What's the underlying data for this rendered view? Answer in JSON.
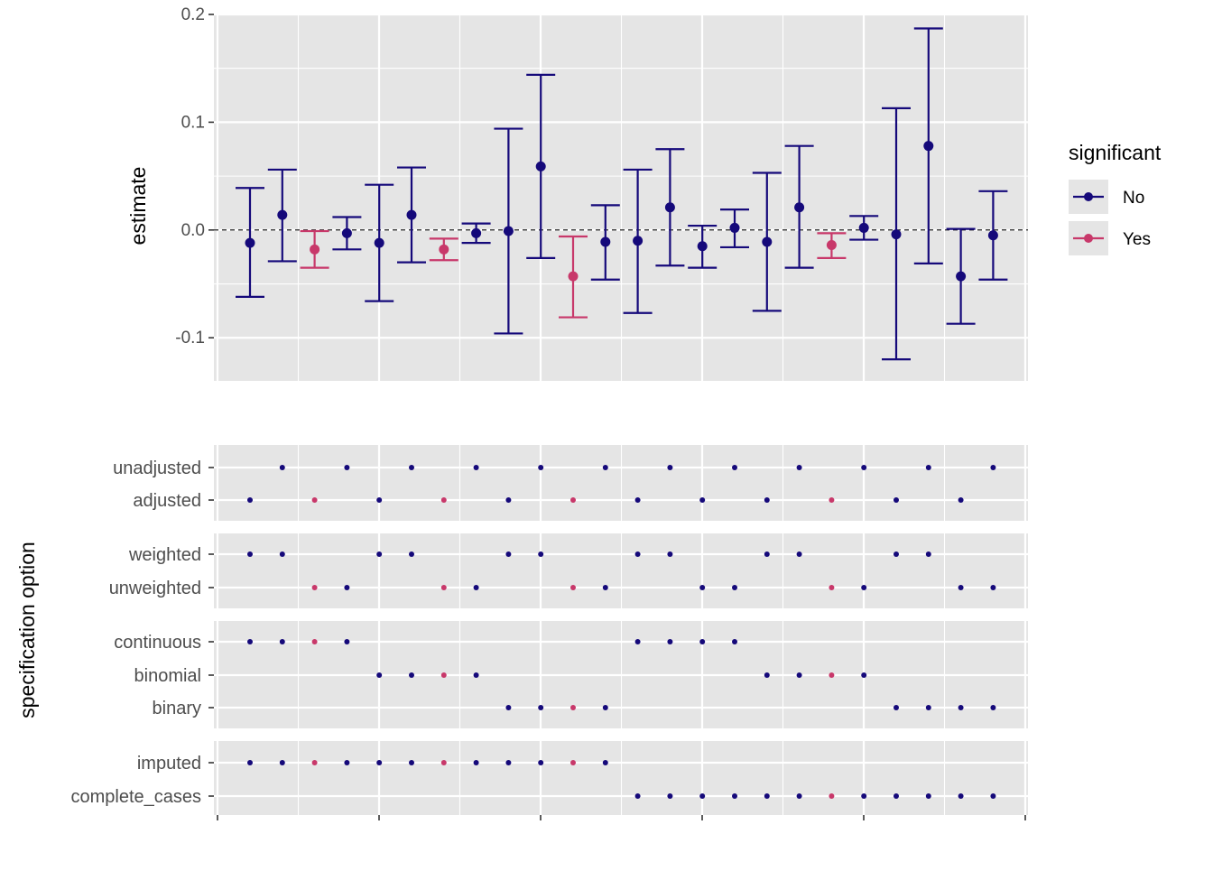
{
  "chart_data": {
    "type": "scatter",
    "subtype": "specification-curve",
    "colors": {
      "No": "#15097a",
      "Yes": "#c8386a",
      "panel_bg": "#e5e5e5",
      "grid": "#ffffff",
      "reference_line": "#000000"
    },
    "estimate_panel": {
      "ylabel": "estimate",
      "ylim": [
        -0.14,
        0.2
      ],
      "yticks": [
        -0.1,
        0.0,
        0.1,
        0.2
      ],
      "ytick_labels": [
        "-0.1",
        "0.0",
        "0.1",
        "0.2"
      ],
      "reference_line": 0,
      "points": [
        {
          "x": 1,
          "estimate": -0.012,
          "low": -0.062,
          "high": 0.039,
          "significant": "No"
        },
        {
          "x": 2,
          "estimate": 0.014,
          "low": -0.029,
          "high": 0.056,
          "significant": "No"
        },
        {
          "x": 3,
          "estimate": -0.018,
          "low": -0.035,
          "high": -0.001,
          "significant": "Yes"
        },
        {
          "x": 4,
          "estimate": -0.003,
          "low": -0.018,
          "high": 0.012,
          "significant": "No"
        },
        {
          "x": 5,
          "estimate": -0.012,
          "low": -0.066,
          "high": 0.042,
          "significant": "No"
        },
        {
          "x": 6,
          "estimate": 0.014,
          "low": -0.03,
          "high": 0.058,
          "significant": "No"
        },
        {
          "x": 7,
          "estimate": -0.018,
          "low": -0.028,
          "high": -0.008,
          "significant": "Yes"
        },
        {
          "x": 8,
          "estimate": -0.003,
          "low": -0.012,
          "high": 0.006,
          "significant": "No"
        },
        {
          "x": 9,
          "estimate": -0.001,
          "low": -0.096,
          "high": 0.094,
          "significant": "No"
        },
        {
          "x": 10,
          "estimate": 0.059,
          "low": -0.026,
          "high": 0.144,
          "significant": "No"
        },
        {
          "x": 11,
          "estimate": -0.043,
          "low": -0.081,
          "high": -0.006,
          "significant": "Yes"
        },
        {
          "x": 12,
          "estimate": -0.011,
          "low": -0.046,
          "high": 0.023,
          "significant": "No"
        },
        {
          "x": 13,
          "estimate": -0.01,
          "low": -0.077,
          "high": 0.056,
          "significant": "No"
        },
        {
          "x": 14,
          "estimate": 0.021,
          "low": -0.033,
          "high": 0.075,
          "significant": "No"
        },
        {
          "x": 15,
          "estimate": -0.015,
          "low": -0.035,
          "high": 0.004,
          "significant": "No"
        },
        {
          "x": 16,
          "estimate": 0.002,
          "low": -0.016,
          "high": 0.019,
          "significant": "No"
        },
        {
          "x": 17,
          "estimate": -0.011,
          "low": -0.075,
          "high": 0.053,
          "significant": "No"
        },
        {
          "x": 18,
          "estimate": 0.021,
          "low": -0.035,
          "high": 0.078,
          "significant": "No"
        },
        {
          "x": 19,
          "estimate": -0.014,
          "low": -0.026,
          "high": -0.003,
          "significant": "Yes"
        },
        {
          "x": 20,
          "estimate": 0.002,
          "low": -0.009,
          "high": 0.013,
          "significant": "No"
        },
        {
          "x": 21,
          "estimate": -0.004,
          "low": -0.12,
          "high": 0.113,
          "significant": "No"
        },
        {
          "x": 22,
          "estimate": 0.078,
          "low": -0.031,
          "high": 0.187,
          "significant": "No"
        },
        {
          "x": 23,
          "estimate": -0.043,
          "low": -0.087,
          "high": 0.001,
          "significant": "No"
        },
        {
          "x": 24,
          "estimate": -0.005,
          "low": -0.046,
          "high": 0.036,
          "significant": "No"
        }
      ]
    },
    "spec_ylabel": "specification option",
    "spec_panels": [
      {
        "options": [
          "unadjusted",
          "adjusted"
        ],
        "choice": [
          "adjusted",
          "unadjusted",
          "adjusted",
          "unadjusted",
          "adjusted",
          "unadjusted",
          "adjusted",
          "unadjusted",
          "adjusted",
          "unadjusted",
          "adjusted",
          "unadjusted",
          "adjusted",
          "unadjusted",
          "adjusted",
          "unadjusted",
          "adjusted",
          "unadjusted",
          "adjusted",
          "unadjusted",
          "adjusted",
          "unadjusted",
          "adjusted",
          "unadjusted"
        ]
      },
      {
        "options": [
          "weighted",
          "unweighted"
        ],
        "choice": [
          "weighted",
          "weighted",
          "unweighted",
          "unweighted",
          "weighted",
          "weighted",
          "unweighted",
          "unweighted",
          "weighted",
          "weighted",
          "unweighted",
          "unweighted",
          "weighted",
          "weighted",
          "unweighted",
          "unweighted",
          "weighted",
          "weighted",
          "unweighted",
          "unweighted",
          "weighted",
          "weighted",
          "unweighted",
          "unweighted"
        ]
      },
      {
        "options": [
          "continuous",
          "binomial",
          "binary"
        ],
        "choice": [
          "continuous",
          "continuous",
          "continuous",
          "continuous",
          "binomial",
          "binomial",
          "binomial",
          "binomial",
          "binary",
          "binary",
          "binary",
          "binary",
          "continuous",
          "continuous",
          "continuous",
          "continuous",
          "binomial",
          "binomial",
          "binomial",
          "binomial",
          "binary",
          "binary",
          "binary",
          "binary"
        ]
      },
      {
        "options": [
          "imputed",
          "complete_cases"
        ],
        "choice": [
          "imputed",
          "imputed",
          "imputed",
          "imputed",
          "imputed",
          "imputed",
          "imputed",
          "imputed",
          "imputed",
          "imputed",
          "imputed",
          "imputed",
          "complete_cases",
          "complete_cases",
          "complete_cases",
          "complete_cases",
          "complete_cases",
          "complete_cases",
          "complete_cases",
          "complete_cases",
          "complete_cases",
          "complete_cases",
          "complete_cases",
          "complete_cases"
        ]
      }
    ],
    "legend": {
      "title": "significant",
      "placement": "right",
      "entries": [
        {
          "label": "No",
          "key": "No"
        },
        {
          "label": "Yes",
          "key": "Yes"
        }
      ]
    }
  }
}
